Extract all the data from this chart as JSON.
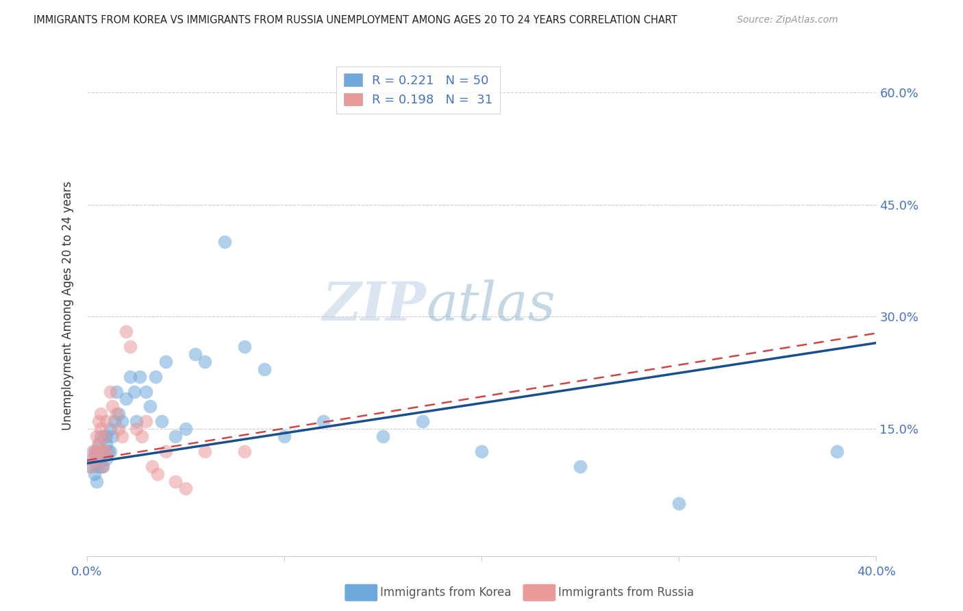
{
  "title": "IMMIGRANTS FROM KOREA VS IMMIGRANTS FROM RUSSIA UNEMPLOYMENT AMONG AGES 20 TO 24 YEARS CORRELATION CHART",
  "source": "Source: ZipAtlas.com",
  "ylabel": "Unemployment Among Ages 20 to 24 years",
  "ytick_labels": [
    "60.0%",
    "45.0%",
    "30.0%",
    "15.0%"
  ],
  "ytick_values": [
    0.6,
    0.45,
    0.3,
    0.15
  ],
  "xlim": [
    0.0,
    0.4
  ],
  "ylim": [
    -0.02,
    0.65
  ],
  "watermark_zip": "ZIP",
  "watermark_atlas": "atlas",
  "legend_korea_R": "0.221",
  "legend_korea_N": "50",
  "legend_russia_R": "0.198",
  "legend_russia_N": "31",
  "korea_color": "#6fa8dc",
  "russia_color": "#ea9999",
  "korea_line_color": "#1a4f8a",
  "russia_line_color": "#cc4444",
  "title_color": "#222222",
  "axis_label_color": "#4472c4",
  "scatter_alpha": 0.55,
  "korea_x": [
    0.002,
    0.003,
    0.004,
    0.004,
    0.005,
    0.005,
    0.005,
    0.006,
    0.006,
    0.007,
    0.007,
    0.008,
    0.008,
    0.009,
    0.01,
    0.01,
    0.01,
    0.011,
    0.012,
    0.012,
    0.013,
    0.014,
    0.015,
    0.016,
    0.018,
    0.02,
    0.022,
    0.024,
    0.025,
    0.027,
    0.03,
    0.032,
    0.035,
    0.038,
    0.04,
    0.045,
    0.05,
    0.055,
    0.06,
    0.07,
    0.08,
    0.09,
    0.1,
    0.12,
    0.15,
    0.17,
    0.2,
    0.25,
    0.3,
    0.38
  ],
  "korea_y": [
    0.1,
    0.11,
    0.12,
    0.09,
    0.12,
    0.1,
    0.08,
    0.13,
    0.11,
    0.1,
    0.14,
    0.1,
    0.12,
    0.14,
    0.13,
    0.11,
    0.14,
    0.12,
    0.15,
    0.12,
    0.14,
    0.16,
    0.2,
    0.17,
    0.16,
    0.19,
    0.22,
    0.2,
    0.16,
    0.22,
    0.2,
    0.18,
    0.22,
    0.16,
    0.24,
    0.14,
    0.15,
    0.25,
    0.24,
    0.4,
    0.26,
    0.23,
    0.14,
    0.16,
    0.14,
    0.16,
    0.12,
    0.1,
    0.05,
    0.12
  ],
  "russia_x": [
    0.002,
    0.003,
    0.004,
    0.005,
    0.005,
    0.006,
    0.006,
    0.007,
    0.007,
    0.008,
    0.008,
    0.009,
    0.01,
    0.01,
    0.012,
    0.013,
    0.015,
    0.016,
    0.018,
    0.02,
    0.022,
    0.025,
    0.028,
    0.03,
    0.033,
    0.036,
    0.04,
    0.045,
    0.05,
    0.06,
    0.08
  ],
  "russia_y": [
    0.1,
    0.12,
    0.11,
    0.14,
    0.12,
    0.16,
    0.13,
    0.15,
    0.17,
    0.12,
    0.1,
    0.14,
    0.16,
    0.12,
    0.2,
    0.18,
    0.17,
    0.15,
    0.14,
    0.28,
    0.26,
    0.15,
    0.14,
    0.16,
    0.1,
    0.09,
    0.12,
    0.08,
    0.07,
    0.12,
    0.12
  ],
  "korea_line_x0": 0.0,
  "korea_line_y0": 0.104,
  "korea_line_x1": 0.4,
  "korea_line_y1": 0.265,
  "russia_line_x0": 0.0,
  "russia_line_y0": 0.108,
  "russia_line_x1": 0.4,
  "russia_line_y1": 0.278
}
